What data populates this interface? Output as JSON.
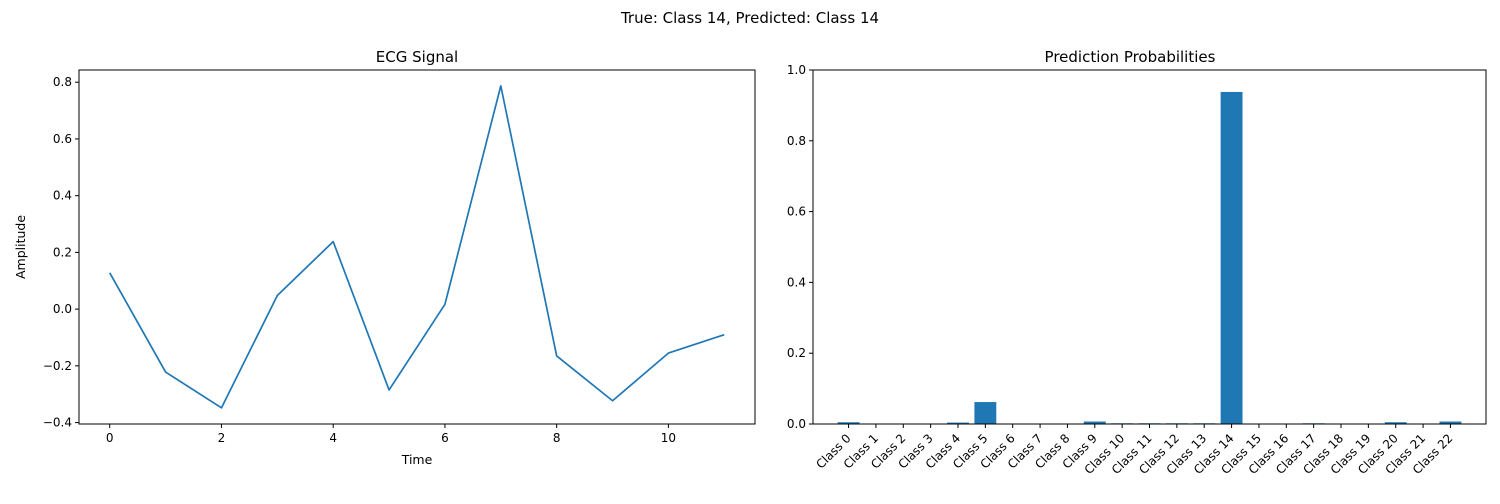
{
  "figure": {
    "suptitle": "True: Class 14, Predicted: Class 14"
  },
  "chart_data": [
    {
      "type": "line",
      "title": "ECG Signal",
      "xlabel": "Time",
      "ylabel": "Amplitude",
      "x": [
        0,
        1,
        2,
        3,
        4,
        5,
        6,
        7,
        8,
        9,
        10,
        11
      ],
      "series": [
        {
          "values": [
            0.128,
            -0.222,
            -0.348,
            0.048,
            0.238,
            -0.285,
            0.017,
            0.787,
            -0.165,
            -0.323,
            -0.155,
            -0.09
          ],
          "color": "#1f77b4"
        }
      ],
      "xlim": [
        -0.55,
        11.55
      ],
      "ylim": [
        -0.405,
        0.843
      ],
      "xticks": [
        0,
        2,
        4,
        6,
        8,
        10
      ],
      "yticks": [
        -0.4,
        -0.2,
        0.0,
        0.2,
        0.4,
        0.6,
        0.8
      ],
      "xtick_labels": [
        "0",
        "2",
        "4",
        "6",
        "8",
        "10"
      ],
      "ytick_labels": [
        "−0.4",
        "−0.2",
        "0.0",
        "0.2",
        "0.4",
        "0.6",
        "0.8"
      ],
      "grid": false
    },
    {
      "type": "bar",
      "title": "Prediction Probabilities",
      "xlabel": "",
      "ylabel": "",
      "categories": [
        "Class 0",
        "Class 1",
        "Class 2",
        "Class 3",
        "Class 4",
        "Class 5",
        "Class 6",
        "Class 7",
        "Class 8",
        "Class 9",
        "Class 10",
        "Class 11",
        "Class 12",
        "Class 13",
        "Class 14",
        "Class 15",
        "Class 16",
        "Class 17",
        "Class 18",
        "Class 19",
        "Class 20",
        "Class 21",
        "Class 22"
      ],
      "values": [
        0.005,
        0.0,
        0.0,
        0.0,
        0.004,
        0.062,
        0.0,
        0.0,
        0.0,
        0.007,
        0.002,
        0.002,
        0.002,
        0.002,
        0.938,
        0.0,
        0.0,
        0.002,
        0.0,
        0.0,
        0.005,
        0.0,
        0.007
      ],
      "color": "#1f77b4",
      "ylim": [
        0,
        1.0
      ],
      "yticks": [
        0.0,
        0.2,
        0.4,
        0.6,
        0.8,
        1.0
      ],
      "ytick_labels": [
        "0.0",
        "0.2",
        "0.4",
        "0.6",
        "0.8",
        "1.0"
      ],
      "grid": false
    }
  ]
}
